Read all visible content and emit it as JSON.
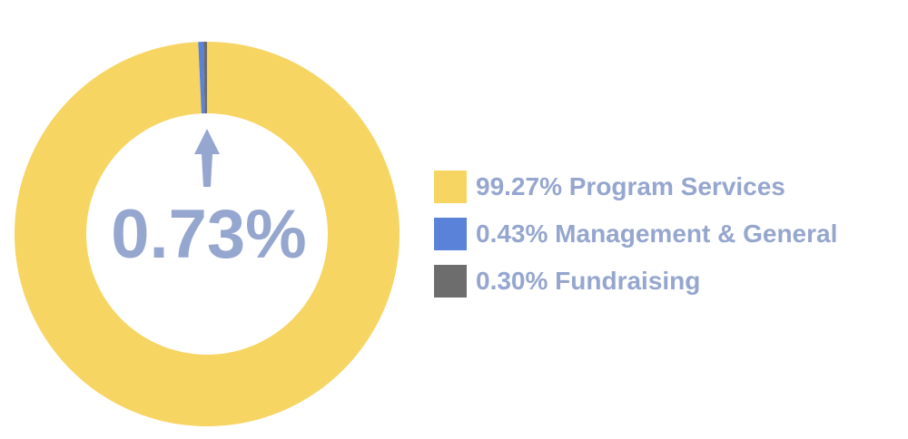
{
  "chart_data": {
    "type": "pie",
    "variant": "donut",
    "categories": [
      "Program Services",
      "Management & General",
      "Fundraising"
    ],
    "values": [
      99.27,
      0.43,
      0.3
    ],
    "colors": [
      "#f7d563",
      "#5982d8",
      "#6d6d6d"
    ],
    "center_label": "0.73%",
    "center_label_color": "#95a6cf",
    "arrow_color": "#95a6cf",
    "legend_placement": "right",
    "legend": [
      {
        "label": "99.27% Program Services",
        "color": "#f7d563"
      },
      {
        "label": "0.43% Management & General",
        "color": "#5982d8"
      },
      {
        "label": "0.30% Fundraising",
        "color": "#6d6d6d"
      }
    ]
  }
}
